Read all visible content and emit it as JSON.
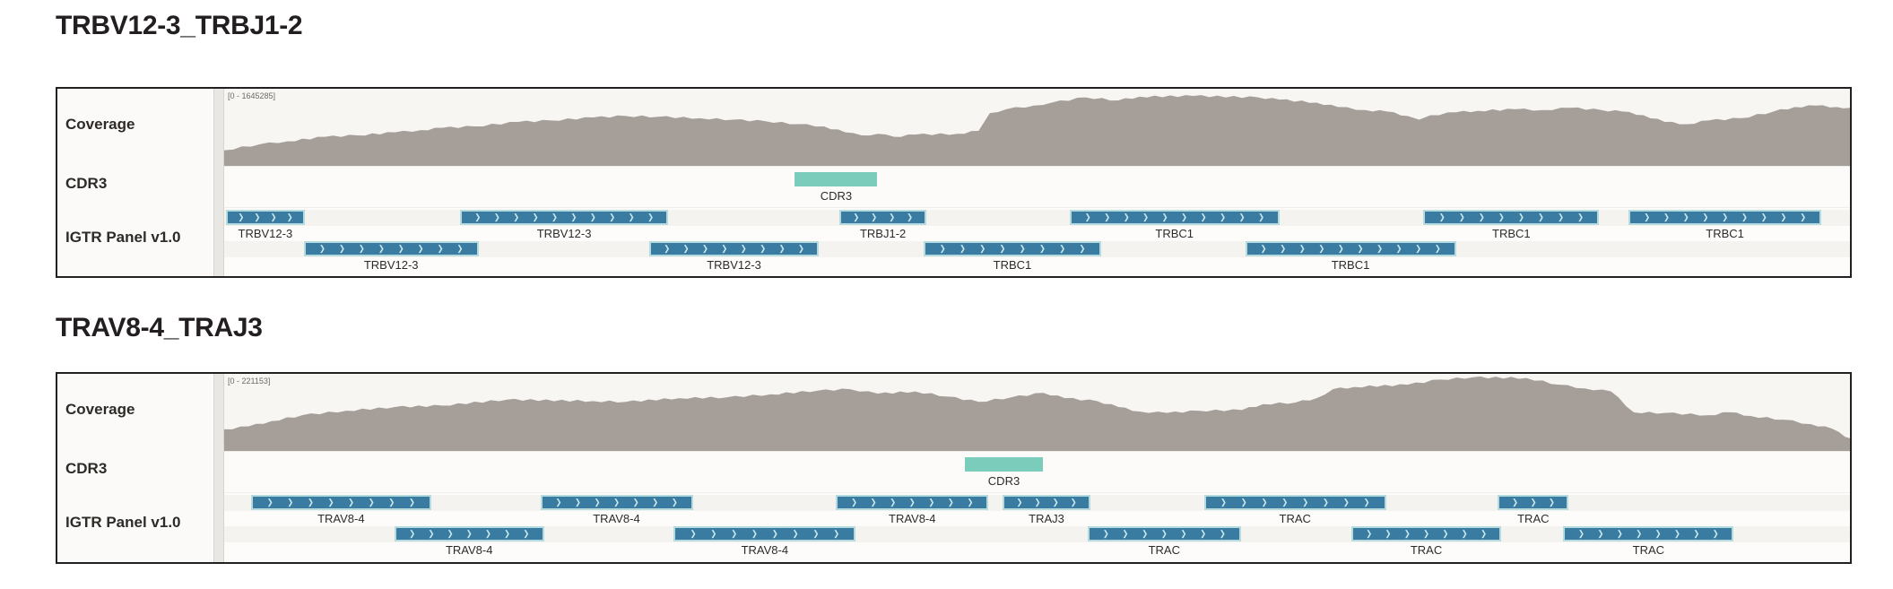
{
  "colors": {
    "coverage_fill": "#a59e99",
    "gene_fill": "#3a7ca1",
    "gene_border": "#b5dbdf",
    "gene_chevron": "#cdeaef",
    "cdr3_fill": "#7bccba"
  },
  "panels": [
    {
      "title": "TRBV12-3_TRBJ1-2",
      "track_labels": {
        "coverage": "Coverage",
        "cdr3": "CDR3",
        "panel": "IGTR Panel v1.0"
      },
      "coverage": {
        "range_label": "[0 - 1645285]",
        "points": [
          [
            0,
            0.21
          ],
          [
            0.022,
            0.29
          ],
          [
            0.039,
            0.33
          ],
          [
            0.062,
            0.39
          ],
          [
            0.082,
            0.41
          ],
          [
            0.105,
            0.45
          ],
          [
            0.121,
            0.48
          ],
          [
            0.134,
            0.51
          ],
          [
            0.154,
            0.53
          ],
          [
            0.181,
            0.59
          ],
          [
            0.201,
            0.61
          ],
          [
            0.227,
            0.65
          ],
          [
            0.247,
            0.67
          ],
          [
            0.267,
            0.66
          ],
          [
            0.293,
            0.64
          ],
          [
            0.313,
            0.62
          ],
          [
            0.333,
            0.6
          ],
          [
            0.353,
            0.56
          ],
          [
            0.369,
            0.53
          ],
          [
            0.382,
            0.45
          ],
          [
            0.392,
            0.41
          ],
          [
            0.402,
            0.43
          ],
          [
            0.412,
            0.39
          ],
          [
            0.425,
            0.42
          ],
          [
            0.451,
            0.43
          ],
          [
            0.464,
            0.47
          ],
          [
            0.471,
            0.71
          ],
          [
            0.481,
            0.76
          ],
          [
            0.498,
            0.81
          ],
          [
            0.509,
            0.85
          ],
          [
            0.53,
            0.92
          ],
          [
            0.55,
            0.88
          ],
          [
            0.563,
            0.93
          ],
          [
            0.596,
            0.94
          ],
          [
            0.636,
            0.92
          ],
          [
            0.649,
            0.89
          ],
          [
            0.672,
            0.85
          ],
          [
            0.685,
            0.79
          ],
          [
            0.702,
            0.75
          ],
          [
            0.715,
            0.73
          ],
          [
            0.728,
            0.67
          ],
          [
            0.735,
            0.62
          ],
          [
            0.742,
            0.68
          ],
          [
            0.758,
            0.72
          ],
          [
            0.771,
            0.74
          ],
          [
            0.794,
            0.76
          ],
          [
            0.811,
            0.75
          ],
          [
            0.828,
            0.78
          ],
          [
            0.847,
            0.75
          ],
          [
            0.86,
            0.73
          ],
          [
            0.873,
            0.68
          ],
          [
            0.886,
            0.59
          ],
          [
            0.9,
            0.56
          ],
          [
            0.913,
            0.61
          ],
          [
            0.933,
            0.64
          ],
          [
            0.953,
            0.73
          ],
          [
            0.966,
            0.79
          ],
          [
            0.979,
            0.81
          ],
          [
            0.992,
            0.79
          ],
          [
            1,
            0.78
          ]
        ]
      },
      "cdr3": {
        "label": "CDR3",
        "left_pct": 35.1,
        "width_pct": 5.07
      },
      "gene_rows": [
        [
          {
            "label": "TRBV12-3",
            "left_pct": 0.11,
            "width_pct": 4.85
          },
          {
            "label": "TRBV12-3",
            "left_pct": 14.49,
            "width_pct": 12.84
          },
          {
            "label": "TRBJ1-2",
            "left_pct": 37.85,
            "width_pct": 5.34
          },
          {
            "label": "TRBC1",
            "left_pct": 52.01,
            "width_pct": 12.89
          },
          {
            "label": "TRBC1",
            "left_pct": 73.77,
            "width_pct": 10.8
          },
          {
            "label": "TRBC1",
            "left_pct": 86.39,
            "width_pct": 11.85
          }
        ],
        [
          {
            "label": "TRBV12-3",
            "left_pct": 4.9,
            "width_pct": 10.74
          },
          {
            "label": "TRBV12-3",
            "left_pct": 26.12,
            "width_pct": 10.47
          },
          {
            "label": "TRBC1",
            "left_pct": 43.03,
            "width_pct": 10.91
          },
          {
            "label": "TRBC1",
            "left_pct": 62.81,
            "width_pct": 12.95
          }
        ]
      ]
    },
    {
      "title": "TRAV8-4_TRAJ3",
      "track_labels": {
        "coverage": "Coverage",
        "cdr3": "CDR3",
        "panel": "IGTR Panel v1.0"
      },
      "coverage": {
        "range_label": "[0 - 221153]",
        "points": [
          [
            0,
            0.29
          ],
          [
            0.015,
            0.33
          ],
          [
            0.029,
            0.4
          ],
          [
            0.048,
            0.48
          ],
          [
            0.075,
            0.54
          ],
          [
            0.105,
            0.59
          ],
          [
            0.134,
            0.61
          ],
          [
            0.174,
            0.69
          ],
          [
            0.227,
            0.67
          ],
          [
            0.247,
            0.66
          ],
          [
            0.28,
            0.71
          ],
          [
            0.309,
            0.72
          ],
          [
            0.336,
            0.76
          ],
          [
            0.365,
            0.81
          ],
          [
            0.385,
            0.83
          ],
          [
            0.402,
            0.77
          ],
          [
            0.425,
            0.8
          ],
          [
            0.445,
            0.73
          ],
          [
            0.464,
            0.66
          ],
          [
            0.484,
            0.72
          ],
          [
            0.504,
            0.78
          ],
          [
            0.517,
            0.71
          ],
          [
            0.537,
            0.67
          ],
          [
            0.55,
            0.59
          ],
          [
            0.563,
            0.53
          ],
          [
            0.58,
            0.51
          ],
          [
            0.599,
            0.54
          ],
          [
            0.626,
            0.55
          ],
          [
            0.639,
            0.63
          ],
          [
            0.659,
            0.65
          ],
          [
            0.672,
            0.71
          ],
          [
            0.682,
            0.83
          ],
          [
            0.695,
            0.86
          ],
          [
            0.728,
            0.89
          ],
          [
            0.748,
            0.96
          ],
          [
            0.768,
            0.99
          ],
          [
            0.801,
            0.98
          ],
          [
            0.821,
            0.89
          ],
          [
            0.837,
            0.84
          ],
          [
            0.853,
            0.8
          ],
          [
            0.867,
            0.52
          ],
          [
            0.886,
            0.51
          ],
          [
            0.913,
            0.48
          ],
          [
            0.926,
            0.52
          ],
          [
            0.939,
            0.47
          ],
          [
            0.959,
            0.42
          ],
          [
            0.976,
            0.36
          ],
          [
            0.989,
            0.3
          ],
          [
            0.997,
            0.19
          ],
          [
            1,
            0.17
          ]
        ]
      },
      "cdr3": {
        "label": "CDR3",
        "left_pct": 45.56,
        "width_pct": 4.79
      },
      "gene_rows": [
        [
          {
            "label": "TRAV8-4",
            "left_pct": 1.65,
            "width_pct": 11.07
          },
          {
            "label": "TRAV8-4",
            "left_pct": 19.45,
            "width_pct": 9.37
          },
          {
            "label": "TRAV8-4",
            "left_pct": 37.63,
            "width_pct": 9.37
          },
          {
            "label": "TRAJ3",
            "left_pct": 47.88,
            "width_pct": 5.4
          },
          {
            "label": "TRAC",
            "left_pct": 60.28,
            "width_pct": 11.18
          },
          {
            "label": "TRAC",
            "left_pct": 78.35,
            "width_pct": 4.35
          }
        ],
        [
          {
            "label": "TRAV8-4",
            "left_pct": 10.47,
            "width_pct": 9.2
          },
          {
            "label": "TRAV8-4",
            "left_pct": 27.66,
            "width_pct": 11.18
          },
          {
            "label": "TRAC",
            "left_pct": 53.11,
            "width_pct": 9.42
          },
          {
            "label": "TRAC",
            "left_pct": 69.31,
            "width_pct": 9.26
          },
          {
            "label": "TRAC",
            "left_pct": 82.37,
            "width_pct": 10.47
          }
        ]
      ]
    }
  ]
}
